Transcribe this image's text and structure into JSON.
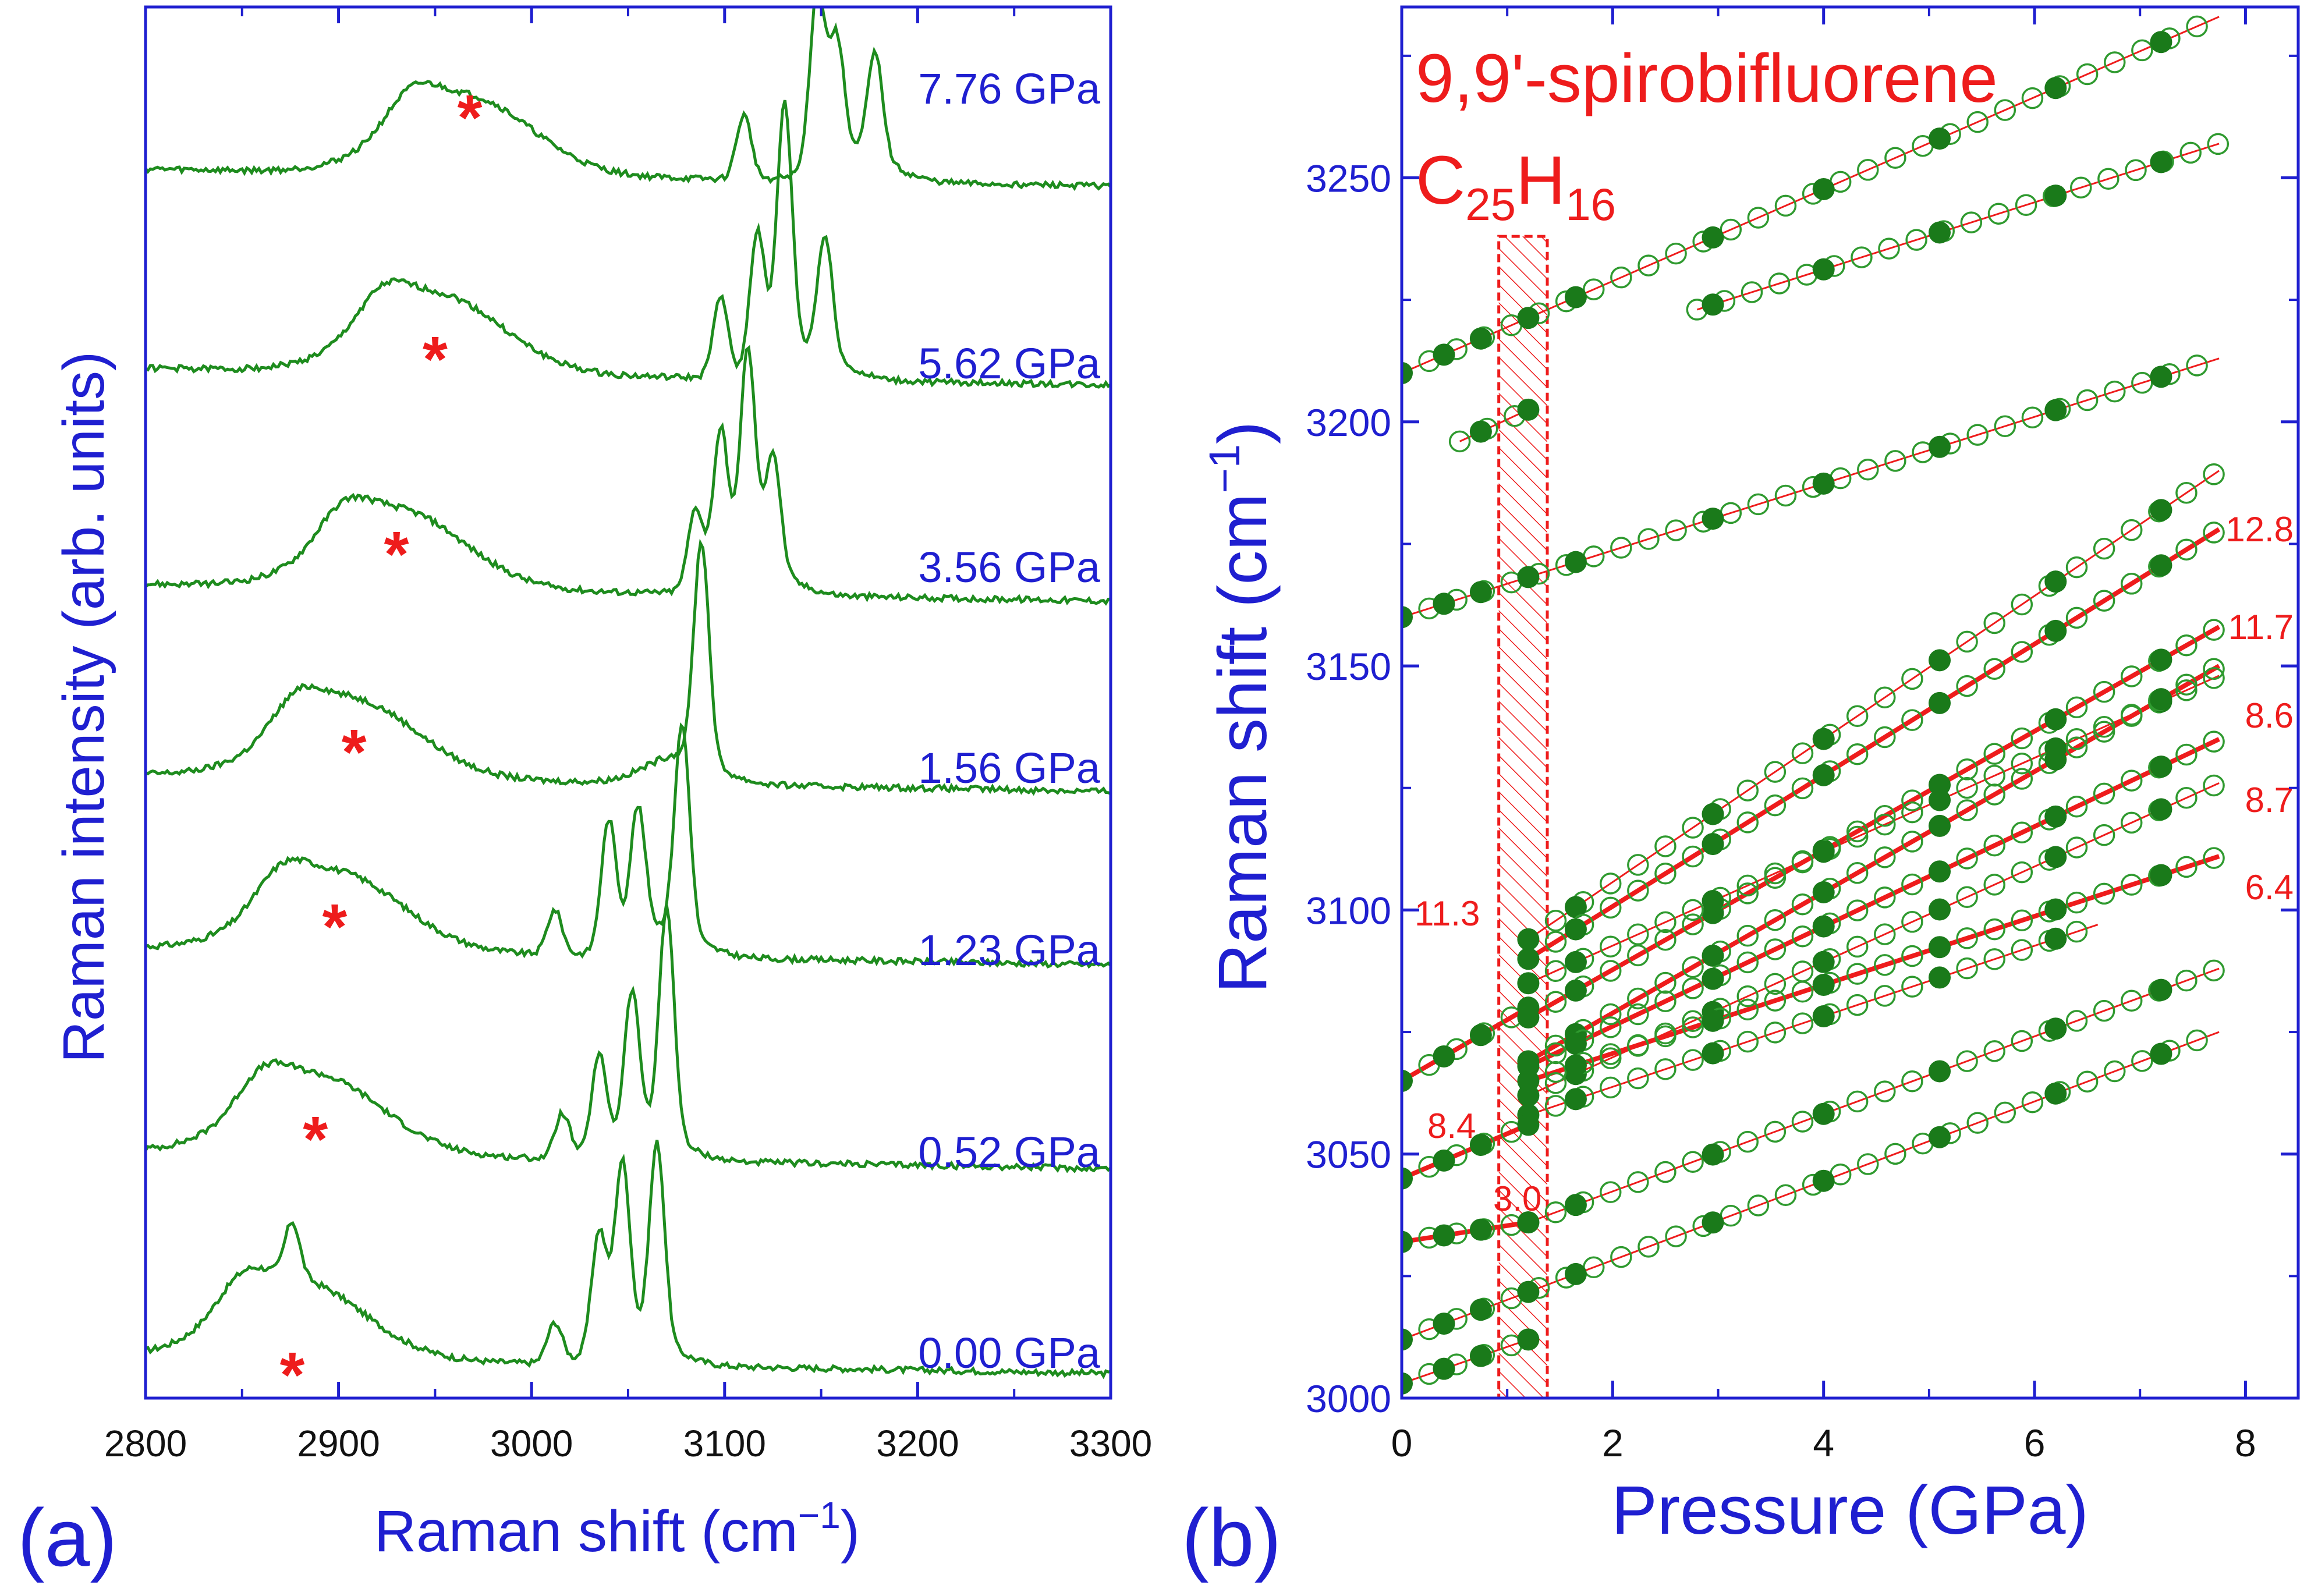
{
  "colors": {
    "axis": "#1f1fd0",
    "spectrum": "#1e8c1e",
    "marker_fill": "#1a7a1a",
    "marker_open": "#2f9a2f",
    "fit": "#ee1c1c",
    "asterisk": "#ee1c1c"
  },
  "panel_a": {
    "tag": "(a)",
    "xlabel": "Raman shift (cm",
    "xlabel_sup": "−1",
    "xlabel_end": ")",
    "ylabel": "Raman intensity (arb. units)",
    "x_ticks": [
      "2800",
      "2900",
      "3000",
      "3100",
      "3200",
      "3300"
    ],
    "spectra": [
      {
        "label": "0.00 GPa",
        "baseline": 0.0,
        "hump_center": 2878,
        "asterisk_x": 2876
      },
      {
        "label": "0.52 GPa",
        "baseline": 1.0,
        "hump_center": 2888,
        "asterisk_x": 2888
      },
      {
        "label": "1.23 GPa",
        "baseline": 2.0,
        "hump_center": 2898,
        "asterisk_x": 2898
      },
      {
        "label": "1.56 GPa",
        "baseline": 3.0,
        "hump_center": 2906,
        "asterisk_x": 2908
      },
      {
        "label": "3.56 GPa",
        "baseline": 4.0,
        "hump_center": 2930,
        "asterisk_x": 2930
      },
      {
        "label": "5.62 GPa",
        "baseline": 5.0,
        "hump_center": 2950,
        "asterisk_x": 2950
      },
      {
        "label": "7.76 GPa",
        "baseline": 6.0,
        "hump_center": 2965,
        "asterisk_x": 2968
      }
    ]
  },
  "panel_b": {
    "tag": "(b)",
    "compound": "9,9'-spirobifluorene",
    "formula": {
      "c": "C",
      "c_sub": "25",
      "h": "H",
      "h_sub": "16"
    },
    "xlabel": "Pressure (GPa)",
    "ylabel": "Raman shift (cm",
    "ylabel_sup": "−1",
    "ylabel_end": ")",
    "x_ticks": [
      "0",
      "2",
      "4",
      "6",
      "8"
    ],
    "y_ticks": [
      "3000",
      "3050",
      "3100",
      "3150",
      "3200",
      "3250"
    ],
    "slope_labels": [
      "12.8",
      "11.7",
      "8.6",
      "8.7",
      "6.4",
      "11.3",
      "8.4",
      "3.0"
    ]
  },
  "chart_data": [
    {
      "type": "line",
      "title": "",
      "xlabel": "Raman shift (cm−1)",
      "ylabel": "Raman intensity (arb. units)",
      "xlim": [
        2800,
        3300
      ],
      "series": [
        {
          "name": "0.00 GPa",
          "peaks": [
            2852,
            2876,
            3012,
            3035,
            3047,
            3065
          ]
        },
        {
          "name": "0.52 GPa",
          "peaks": [
            2888,
            3016,
            3035,
            3052,
            3070
          ]
        },
        {
          "name": "1.23 GPa",
          "peaks": [
            2898,
            3012,
            3040,
            3055,
            3078
          ]
        },
        {
          "name": "1.56 GPa",
          "peaks": [
            2906,
            3088
          ]
        },
        {
          "name": "3.56 GPa",
          "peaks": [
            2930,
            3085,
            3098,
            3112,
            3125
          ]
        },
        {
          "name": "5.62 GPa",
          "peaks": [
            2950,
            3098,
            3117,
            3131,
            3152
          ]
        },
        {
          "name": "7.76 GPa",
          "peaks": [
            2965,
            3110,
            3148,
            3158,
            3178
          ]
        }
      ]
    },
    {
      "type": "scatter",
      "title": "9,9'-spirobifluorene C25H16",
      "xlabel": "Pressure (GPa)",
      "ylabel": "Raman shift (cm−1)",
      "xlim": [
        0,
        8.5
      ],
      "ylim": [
        3000,
        3285
      ],
      "filled_pressures": [
        0,
        0.4,
        0.75,
        1.2,
        1.65,
        2.95,
        4.0,
        5.1,
        6.2,
        7.2
      ],
      "modes": [
        {
          "p0": 0,
          "p1": 7.75,
          "w0": 3210,
          "w1": 3283,
          "thick": false
        },
        {
          "p0": 2.8,
          "p1": 7.75,
          "w0": 3223,
          "w1": 3257,
          "thick": false
        },
        {
          "p0": 0.55,
          "p1": 1.25,
          "w0": 3196,
          "w1": 3203,
          "thick": false
        },
        {
          "p0": 0,
          "p1": 7.75,
          "w0": 3160,
          "w1": 3213,
          "thick": false
        },
        {
          "p0": 1.2,
          "p1": 7.75,
          "w0": 3094,
          "w1": 3190,
          "thick": false
        },
        {
          "p0": 1.2,
          "p1": 7.75,
          "w0": 3090,
          "w1": 3178,
          "thick": true,
          "slope": 12.8
        },
        {
          "p0": 0,
          "p1": 1.2,
          "w0": 3065,
          "w1": 3080,
          "thick": true,
          "slope": 11.3
        },
        {
          "p0": 1.2,
          "p1": 7.75,
          "w0": 3078,
          "w1": 3158,
          "thick": true,
          "slope": 11.7
        },
        {
          "p0": 1.2,
          "p1": 7.75,
          "w0": 3085,
          "w1": 3148,
          "thick": false
        },
        {
          "p0": 1.2,
          "p1": 7.75,
          "w0": 3069,
          "w1": 3150,
          "thick": true,
          "slope": 8.6
        },
        {
          "p0": 1.2,
          "p1": 7.75,
          "w0": 3068,
          "w1": 3135,
          "thick": true,
          "slope": 8.7
        },
        {
          "p0": 1.2,
          "p1": 7.75,
          "w0": 3062,
          "w1": 3126,
          "thick": false
        },
        {
          "p0": 1.2,
          "p1": 7.75,
          "w0": 3065,
          "w1": 3111,
          "thick": true,
          "slope": 6.4
        },
        {
          "p0": 1.2,
          "p1": 6.6,
          "w0": 3058,
          "w1": 3097,
          "thick": false
        },
        {
          "p0": 0,
          "p1": 1.2,
          "w0": 3045,
          "w1": 3056,
          "thick": true,
          "slope": 8.4
        },
        {
          "p0": 0,
          "p1": 1.2,
          "w0": 3032,
          "w1": 3036,
          "thick": true,
          "slope": 3.0
        },
        {
          "p0": 1.2,
          "p1": 7.75,
          "w0": 3036,
          "w1": 3088,
          "thick": false
        },
        {
          "p0": 0,
          "p1": 7.75,
          "w0": 3012,
          "w1": 3075,
          "thick": false
        },
        {
          "p0": 0,
          "p1": 1.2,
          "w0": 3003,
          "w1": 3012,
          "thick": false
        }
      ],
      "transition_region": [
        0.92,
        1.38
      ]
    }
  ]
}
